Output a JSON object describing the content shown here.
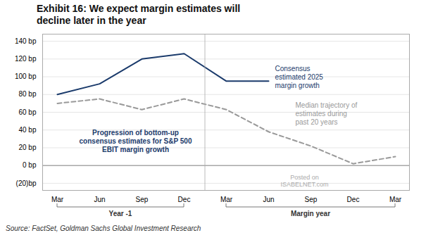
{
  "chart_data": {
    "type": "line",
    "title": "Exhibit 16: We expect margin estimates will\ndecline later in the year",
    "source": "Source: FactSet, Goldman Sachs Global Investment Research",
    "categories": [
      "Mar",
      "Jun",
      "Sep",
      "Dec",
      "Mar",
      "Jun",
      "Sep",
      "Dec",
      "Mar"
    ],
    "series": [
      {
        "color": "#1a3a6b",
        "line_style": "solid",
        "values": [
          80,
          92,
          120,
          126,
          95,
          95,
          null,
          null,
          null
        ]
      },
      {
        "color": "#999999",
        "line_style": "dashed",
        "values": [
          70,
          75,
          63,
          75,
          63,
          38,
          22,
          2,
          10
        ]
      }
    ],
    "ylim": [
      -28,
      148
    ],
    "yticks": [
      {
        "value": -20,
        "label": "(20)bp"
      },
      {
        "value": 0,
        "label": "0 bp"
      },
      {
        "value": 20,
        "label": "20 bp"
      },
      {
        "value": 40,
        "label": "40 bp"
      },
      {
        "value": 60,
        "label": "60 bp"
      },
      {
        "value": 80,
        "label": "80 bp"
      },
      {
        "value": 100,
        "label": "100 bp"
      },
      {
        "value": 120,
        "label": "120 bp"
      },
      {
        "value": 140,
        "label": "140 bp"
      }
    ],
    "grid": true,
    "annotations": [
      "Consensus\nestimated 2025\nmargin growth",
      "Median trajectory of\nestimates during\npast 20 years",
      "Progression of bottom-up\nconsensus estimates for S&P 500\nEBIT margin growth",
      "Year -1",
      "Margin year",
      "Posted on",
      "ISABELNET.com"
    ]
  }
}
